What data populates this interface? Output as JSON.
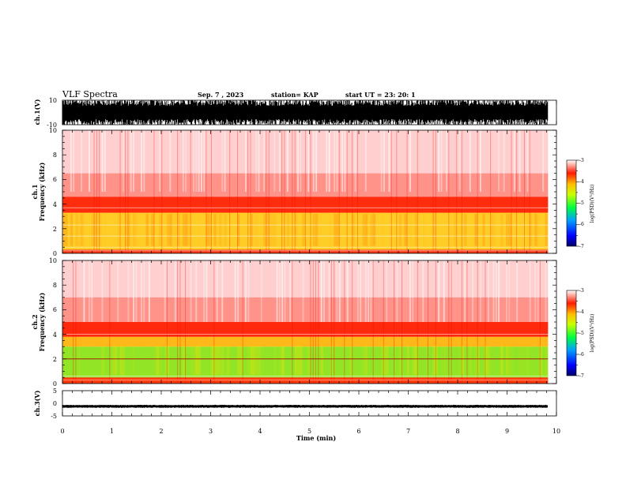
{
  "header": {
    "title": "VLF Spectra",
    "date": "Sep. 7  , 2023",
    "station": "station= KAP",
    "start_ut": "start  UT =   23: 20: 1"
  },
  "chart_data": [
    {
      "type": "line",
      "panel": "ch1-waveform",
      "ylabel": "ch.1(V)",
      "ylim": [
        -10,
        10
      ],
      "y_ticks": [
        "10",
        "-10"
      ],
      "xlim": [
        0,
        10
      ],
      "data_end": 9.83,
      "series": [
        {
          "values_range": [
            -10,
            10
          ]
        }
      ]
    },
    {
      "type": "heatmap",
      "panel": "ch1-spectrogram",
      "ylabel": "ch.1\nFrequency  (kHz)",
      "ylim": [
        0,
        10
      ],
      "y_ticks": [
        "0",
        "2",
        "4",
        "6",
        "8",
        "10"
      ],
      "xlim": [
        0,
        10
      ],
      "data_end": 9.83,
      "colorbar": {
        "label": "log(PSD)(V²/Hz)",
        "range": [
          -7,
          -3
        ],
        "ticks": [
          "-3",
          "-4",
          "-5",
          "-6",
          "-7"
        ]
      }
    },
    {
      "type": "heatmap",
      "panel": "ch2-spectrogram",
      "ylabel": "ch.2\nFrequency  (kHz)",
      "ylim": [
        0,
        10
      ],
      "y_ticks": [
        "0",
        "2",
        "4",
        "6",
        "8",
        "10"
      ],
      "xlim": [
        0,
        10
      ],
      "data_end": 9.83,
      "colorbar": {
        "label": "log(PSD)(V²/Hz)",
        "range": [
          -7,
          -3
        ],
        "ticks": [
          "-3",
          "-4",
          "-5",
          "-6",
          "-7"
        ]
      }
    },
    {
      "type": "line",
      "panel": "ch3-waveform",
      "ylabel": "ch.3(V)",
      "ylim": [
        -5,
        5
      ],
      "y_ticks": [
        "5",
        "0",
        "-5"
      ],
      "xlim": [
        0,
        10
      ],
      "data_end": 9.83,
      "series": [
        {
          "values_range": [
            -1.8,
            -0.6
          ]
        }
      ],
      "xlabel": "Time  (min)",
      "x_ticks": [
        "0",
        "1",
        "2",
        "3",
        "4",
        "5",
        "6",
        "7",
        "8",
        "9",
        "10"
      ]
    }
  ]
}
